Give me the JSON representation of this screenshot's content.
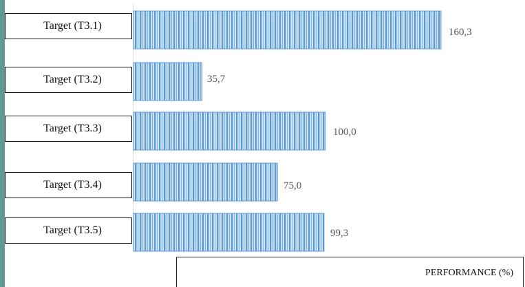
{
  "chart_data": {
    "type": "bar",
    "orientation": "horizontal",
    "categories": [
      "Target (T3.1)",
      "Target (T3.2)",
      "Target (T3.3)",
      "Target (T3.4)",
      "Target (T3.5)"
    ],
    "values": [
      160.3,
      35.7,
      100.0,
      75.0,
      99.3
    ],
    "value_labels": [
      "160,3",
      "35,7",
      "100,0",
      "75,0",
      "99,3"
    ],
    "xlabel": "PERFORMANCE (%)",
    "ylabel": "",
    "title": "",
    "xlim": [
      0,
      160.3
    ],
    "grid": false,
    "legend": "none",
    "bar_color": "#5b9bd5",
    "bar_stripe_color": "#d6e8f7"
  }
}
